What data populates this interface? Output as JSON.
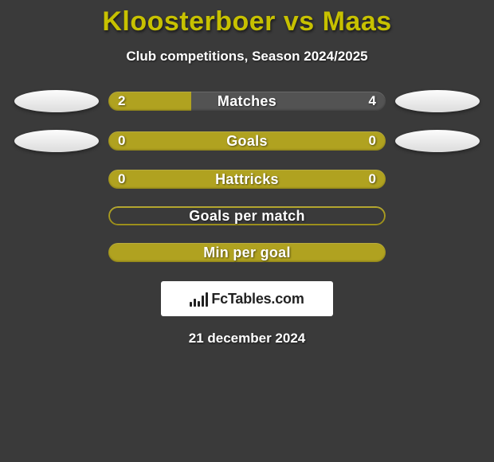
{
  "title": {
    "text": "Kloosterboer vs Maas",
    "color": "#c7c100"
  },
  "subtitle": "Club competitions, Season 2024/2025",
  "date": "21 december 2024",
  "brand": "FcTables.com",
  "colors": {
    "background": "#3a3a3a",
    "accent": "#b0a220",
    "accent_border": "#b0a220",
    "neutral_fill": "#535353",
    "placeholder_fill": "#eeeeee",
    "brand_bg": "#ffffff",
    "brand_text": "#222222",
    "text": "#ffffff"
  },
  "rows": [
    {
      "label": "Matches",
      "left_value": "2",
      "right_value": "4",
      "left_color": "#b0a220",
      "right_color": "#535353",
      "left_pct": 30,
      "show_values": true,
      "show_placeholders": true,
      "show_border": false
    },
    {
      "label": "Goals",
      "left_value": "0",
      "right_value": "0",
      "left_color": "#b0a220",
      "right_color": "#b0a220",
      "left_pct": 100,
      "show_values": true,
      "show_placeholders": true,
      "show_border": false
    },
    {
      "label": "Hattricks",
      "left_value": "0",
      "right_value": "0",
      "left_color": "#b0a220",
      "right_color": "#b0a220",
      "left_pct": 100,
      "show_values": true,
      "show_placeholders": false,
      "show_border": false
    },
    {
      "label": "Goals per match",
      "left_value": "",
      "right_value": "",
      "left_color": "transparent",
      "right_color": "transparent",
      "left_pct": 50,
      "show_values": false,
      "show_placeholders": false,
      "show_border": true,
      "border_color": "#b0a220"
    },
    {
      "label": "Min per goal",
      "left_value": "",
      "right_value": "",
      "left_color": "#b0a220",
      "right_color": "#b0a220",
      "left_pct": 100,
      "show_values": false,
      "show_placeholders": false,
      "show_border": false
    }
  ],
  "brand_icon_bars": [
    6,
    10,
    7,
    14,
    18
  ]
}
